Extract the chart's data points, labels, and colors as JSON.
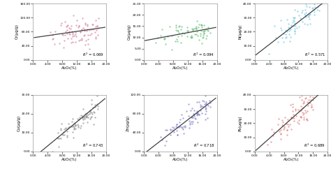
{
  "panels": [
    {
      "ylabel": "Cr(μg/g)",
      "r2": 0.069,
      "color": "#d4839a",
      "ylim": [
        0,
        160
      ],
      "yticks": [
        0,
        40,
        80,
        120,
        160
      ],
      "yticklabels": [
        "0.00",
        "40.00",
        "80.00",
        "120.00",
        "160.00"
      ],
      "slope": 1.5,
      "intercept": 63,
      "x_min": 2.0,
      "x_max": 18.5,
      "noise": 18,
      "n": 90
    },
    {
      "ylabel": "Co(μg/g)",
      "r2": 0.094,
      "color": "#6abf7a",
      "ylim": [
        0,
        25
      ],
      "yticks": [
        0,
        5,
        10,
        15,
        20,
        25
      ],
      "yticklabels": [
        "0.00",
        "5.00",
        "10.00",
        "15.00",
        "20.00",
        "25.00"
      ],
      "slope": 0.3,
      "intercept": 8.5,
      "x_min": 2.0,
      "x_max": 18.5,
      "noise": 2.5,
      "n": 80
    },
    {
      "ylabel": "Ni(μg/g)",
      "r2": 0.571,
      "color": "#7bc8e0",
      "ylim": [
        0,
        40
      ],
      "yticks": [
        0,
        10,
        20,
        30,
        40
      ],
      "yticklabels": [
        "0.00",
        "10.00",
        "20.00",
        "30.00",
        "40.00"
      ],
      "slope": 2.0,
      "intercept": 3.0,
      "x_min": 2.0,
      "x_max": 18.5,
      "noise": 4.5,
      "n": 80
    },
    {
      "ylabel": "Cu(μg/g)",
      "r2": 0.743,
      "color": "#909090",
      "ylim": [
        0,
        30
      ],
      "yticks": [
        0,
        10,
        20,
        30
      ],
      "yticklabels": [
        "0.00",
        "10.00",
        "20.00",
        "30.00"
      ],
      "slope": 1.6,
      "intercept": -3.5,
      "x_min": 2.0,
      "x_max": 18.0,
      "noise": 3.0,
      "n": 90
    },
    {
      "ylabel": "Zn(μg/g)",
      "r2": 0.718,
      "color": "#8080c8",
      "ylim": [
        0,
        120
      ],
      "yticks": [
        0,
        40,
        80,
        120
      ],
      "yticklabels": [
        "0.00",
        "40.00",
        "80.00",
        "120.00"
      ],
      "slope": 6.0,
      "intercept": -5.0,
      "x_min": 2.5,
      "x_max": 18.5,
      "noise": 12,
      "n": 90
    },
    {
      "ylabel": "Pb(μg/g)",
      "r2": 0.689,
      "color": "#e08080",
      "ylim": [
        0,
        40
      ],
      "yticks": [
        0,
        10,
        20,
        30,
        40
      ],
      "yticklabels": [
        "0.00",
        "10.00",
        "20.00",
        "30.00",
        "40.00"
      ],
      "slope": 2.3,
      "intercept": 0.0,
      "x_min": 2.5,
      "x_max": 16.5,
      "noise": 5.0,
      "n": 90
    }
  ],
  "xlabel": "Al₂O₃(%)",
  "xlim": [
    0,
    20
  ],
  "xticks": [
    0,
    4,
    8,
    12,
    16,
    20
  ],
  "xticklabels": [
    "0.00",
    "4.00",
    "8.00",
    "12.00",
    "16.00",
    "20.00"
  ],
  "background_color": "#ffffff",
  "line_color": "#404040"
}
